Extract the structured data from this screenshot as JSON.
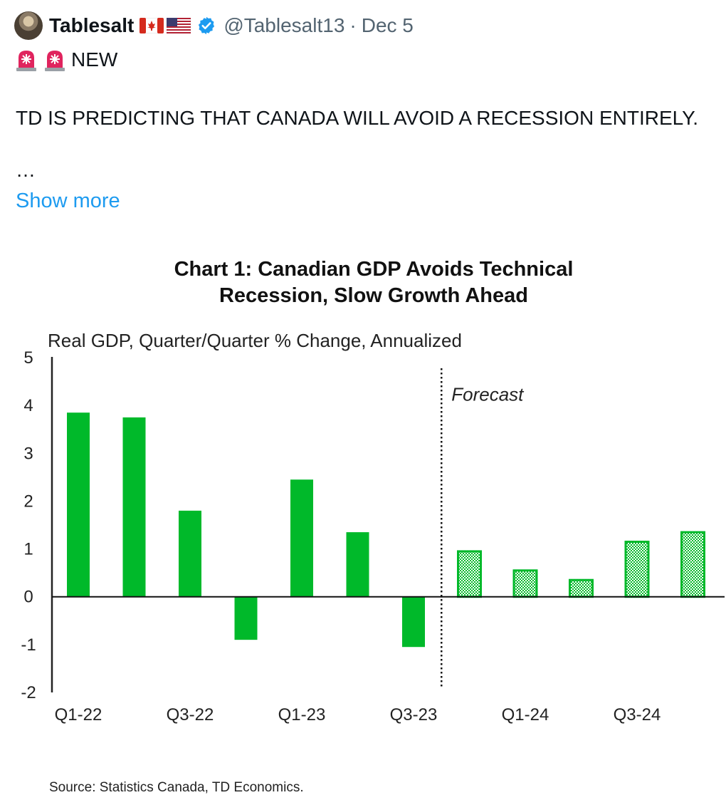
{
  "tweet": {
    "author_name": "Tablesalt",
    "flags": [
      "canada-flag-icon",
      "us-flag-icon"
    ],
    "verified": true,
    "handle": "@Tablesalt13",
    "separator": "·",
    "date": "Dec 5",
    "headline": "NEW",
    "text": "TD IS PREDICTING THAT CANADA WILL AVOID A RECESSION ENTIRELY.",
    "ellipsis": "…",
    "show_more": "Show more"
  },
  "colors": {
    "bar_fill": "#00b92a",
    "forecast_fill": "#9be8a8",
    "link": "#1d9bf0",
    "muted": "#536471"
  },
  "chart_data": {
    "type": "bar",
    "title_line1": "Chart 1: Canadian GDP Avoids Technical",
    "title_line2": "Recession, Slow Growth Ahead",
    "ylabel": "Real GDP, Quarter/Quarter % Change, Annualized",
    "ylim": [
      -2,
      5
    ],
    "yticks": [
      "5",
      "4",
      "3",
      "2",
      "1",
      "0",
      "-1",
      "-2"
    ],
    "categories": [
      "Q1-22",
      "Q2-22",
      "Q3-22",
      "Q4-22",
      "Q1-23",
      "Q2-23",
      "Q3-23",
      "Q4-23",
      "Q1-24",
      "Q2-24",
      "Q3-24",
      "Q4-24"
    ],
    "tick_labels": [
      "Q1-22",
      "Q3-22",
      "Q1-23",
      "Q3-23",
      "Q1-24",
      "Q3-24"
    ],
    "values": [
      3.85,
      3.75,
      1.8,
      -0.9,
      2.45,
      1.35,
      -1.05,
      0.95,
      0.55,
      0.35,
      1.15,
      1.35
    ],
    "forecast_start": "Q4-23",
    "forecast_label": "Forecast",
    "source": "Source: Statistics Canada, TD Economics.",
    "grid": false,
    "legend": "none"
  }
}
